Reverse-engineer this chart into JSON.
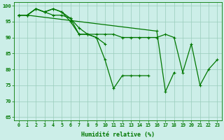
{
  "xlabel": "Humidité relative (%)",
  "xlim": [
    -0.5,
    23.5
  ],
  "ylim": [
    64,
    101
  ],
  "yticks": [
    65,
    70,
    75,
    80,
    85,
    90,
    95,
    100
  ],
  "xticks": [
    0,
    1,
    2,
    3,
    4,
    5,
    6,
    7,
    8,
    9,
    10,
    11,
    12,
    13,
    14,
    15,
    16,
    17,
    18,
    19,
    20,
    21,
    22,
    23
  ],
  "background_color": "#cceee8",
  "grid_color": "#99ccbb",
  "line_color": "#007700",
  "series": [
    {
      "x": [
        0,
        1,
        2,
        3,
        4,
        5,
        6,
        7,
        8,
        9,
        10
      ],
      "y": [
        97,
        97,
        99,
        98,
        97,
        97,
        96,
        91,
        91,
        90,
        88
      ]
    },
    {
      "x": [
        0,
        1,
        2,
        3,
        4,
        5,
        6,
        7,
        8,
        9,
        10,
        11,
        12,
        13,
        14,
        15
      ],
      "y": [
        97,
        97,
        99,
        98,
        99,
        98,
        95,
        91,
        91,
        90,
        83,
        74,
        78,
        78,
        78,
        78
      ]
    },
    {
      "x": [
        0,
        1,
        2,
        3,
        4,
        5,
        6,
        7,
        8,
        9,
        10,
        11,
        12,
        13,
        14,
        15,
        16,
        17,
        18,
        19,
        20,
        21,
        22,
        23
      ],
      "y": [
        97,
        97,
        99,
        98,
        99,
        98,
        96,
        93,
        91,
        91,
        91,
        91,
        90,
        90,
        90,
        90,
        90,
        91,
        90,
        79,
        88,
        75,
        80,
        83
      ]
    },
    {
      "x": [
        0,
        1,
        16,
        17,
        18
      ],
      "y": [
        97,
        97,
        92,
        73,
        79
      ]
    }
  ],
  "figsize": [
    3.2,
    2.0
  ],
  "dpi": 100,
  "lw": 0.9,
  "ms": 3.0,
  "mew": 0.8
}
